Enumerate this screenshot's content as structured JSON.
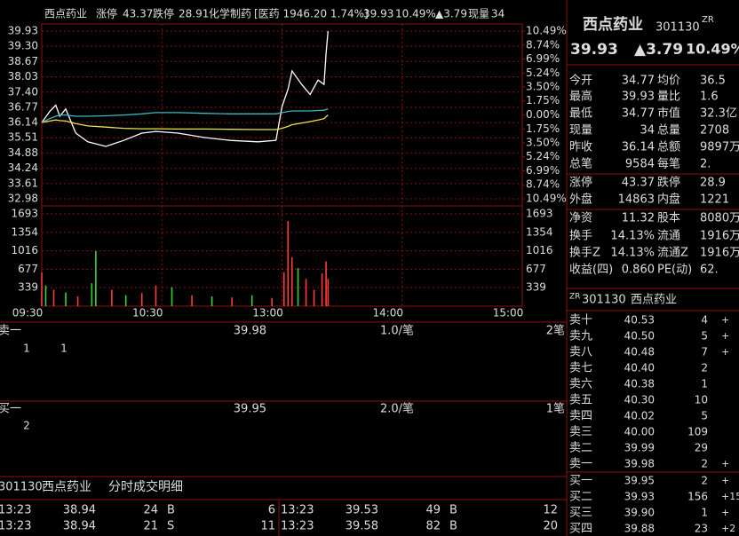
{
  "chart_header": {
    "name": "西点药业",
    "limit_up_label": "涨停",
    "limit_up": "43.37",
    "limit_down_label": "跌停",
    "limit_down": "28.91",
    "industry": "化学制药",
    "index_info": "[医药 1946.20 1.74%]",
    "price": "39.93",
    "change_pct": "10.49%",
    "change": "▲3.79",
    "volume_label": "现量",
    "volume": "34"
  },
  "chart_data": [
    {
      "type": "line",
      "x": [
        "09:30",
        "09:34",
        "09:37",
        "09:39",
        "09:42",
        "09:47",
        "09:53",
        "10:02",
        "10:11",
        "10:20",
        "10:27",
        "10:38",
        "10:51",
        "11:04",
        "11:18",
        "11:27",
        "13:00",
        "13:03",
        "13:05",
        "13:10",
        "13:14",
        "13:18",
        "13:21",
        "13:22",
        "13:23"
      ],
      "series": [
        {
          "color": "#ffffff",
          "values": [
            36.14,
            36.6,
            36.86,
            36.4,
            36.7,
            35.7,
            35.34,
            35.15,
            35.4,
            35.7,
            35.77,
            35.7,
            35.52,
            35.4,
            35.34,
            35.4,
            36.8,
            37.52,
            38.28,
            37.7,
            37.3,
            37.9,
            37.72,
            39.0,
            39.93
          ]
        },
        {
          "color": "#e8e84a",
          "values": [
            36.14,
            36.2,
            36.25,
            36.22,
            36.2,
            36.1,
            36.0,
            35.95,
            35.9,
            35.88,
            35.88,
            35.87,
            35.87,
            35.86,
            35.85,
            35.85,
            35.9,
            35.98,
            36.05,
            36.12,
            36.18,
            36.24,
            36.3,
            36.38,
            36.45
          ]
        },
        {
          "color": "#3fb8c0",
          "values": [
            36.14,
            36.3,
            36.4,
            36.45,
            36.45,
            36.4,
            36.4,
            36.42,
            36.45,
            36.5,
            36.55,
            36.55,
            36.52,
            36.5,
            36.5,
            36.5,
            36.55,
            36.6,
            36.62,
            36.62,
            36.62,
            36.64,
            36.65,
            36.68,
            36.7
          ]
        }
      ],
      "ylim": [
        32.98,
        39.93
      ],
      "yticks": [
        39.93,
        {
          "value": 39.3,
          "label": "39.30"
        },
        38.67,
        38.03,
        {
          "value": 37.4,
          "label": "37.40"
        },
        36.77,
        36.14,
        35.51,
        34.88,
        34.24,
        33.61,
        32.98
      ],
      "y2lim": [
        -10.49,
        10.49
      ],
      "y2ticks": [
        {
          "value": 10.49,
          "label": "10.49%"
        },
        {
          "value": 8.74,
          "label": "8.74%"
        },
        {
          "value": 6.99,
          "label": "6.99%"
        },
        {
          "value": 5.24,
          "label": "5.24%"
        },
        {
          "value": 3.5,
          "label": "3.50%"
        },
        {
          "value": 1.75,
          "label": "1.75%"
        },
        {
          "value": 0,
          "label": "0.00%"
        },
        {
          "value": -1.75,
          "label": "1.75%"
        },
        {
          "value": -3.5,
          "label": "3.50%"
        },
        {
          "value": -5.24,
          "label": "5.24%"
        },
        {
          "value": -6.99,
          "label": "6.99%"
        },
        {
          "value": -8.74,
          "label": "8.74%"
        },
        {
          "value": -10.49,
          "label": "10.49%"
        }
      ],
      "xticks": [
        "09:30",
        "10:30",
        "13:00",
        "14:00",
        "15:00"
      ],
      "grid": true
    },
    {
      "type": "bar",
      "x": [
        "09:30",
        "09:32",
        "09:36",
        "09:42",
        "09:48",
        "09:55",
        "09:57",
        "10:05",
        "10:12",
        "10:20",
        "10:27",
        "10:35",
        "10:45",
        "10:55",
        "11:05",
        "11:15",
        "11:25",
        "13:01",
        "13:03",
        "13:05",
        "13:08",
        "13:12",
        "13:16",
        "13:20",
        "13:22",
        "13:23"
      ],
      "values": [
        620,
        380,
        300,
        250,
        180,
        420,
        1010,
        300,
        200,
        240,
        380,
        350,
        200,
        180,
        160,
        200,
        150,
        620,
        1560,
        900,
        700,
        500,
        300,
        600,
        820,
        500
      ],
      "colors": [
        "#ff3b3b",
        "#3bd13b",
        "#ff3b3b",
        "#3bd13b",
        "#ff3b3b",
        "#3bd13b",
        "#3bd13b",
        "#ff3b3b",
        "#3bd13b",
        "#ff3b3b",
        "#ff3b3b",
        "#3bd13b",
        "#ff3b3b",
        "#3bd13b",
        "#ff3b3b",
        "#3bd13b",
        "#ff3b3b",
        "#ff3b3b",
        "#ff3b3b",
        "#ff3b3b",
        "#3bd13b",
        "#ff3b3b",
        "#ff3b3b",
        "#ff3b3b",
        "#ff3b3b",
        "#ff3b3b"
      ],
      "ylim": [
        0,
        1693
      ],
      "yticks": [
        339,
        677,
        1016,
        1354,
        1693
      ],
      "grid": true
    }
  ],
  "level1": {
    "ask": {
      "label": "卖一",
      "price": "39.98",
      "per": "1.0/笔",
      "count": "2笔",
      "queue": [
        "1",
        "1"
      ]
    },
    "bid": {
      "label": "买一",
      "price": "39.95",
      "per": "2.0/笔",
      "count": "1笔",
      "queue": [
        "2"
      ]
    }
  },
  "detail": {
    "ticker": "301130",
    "name": "西点药业",
    "title": "分时成交明细",
    "rows": [
      [
        [
          "13:23",
          "38.94",
          "24",
          "B",
          "6"
        ],
        [
          "13:23",
          "39.53",
          "49",
          "B",
          "12"
        ]
      ],
      [
        [
          "13:23",
          "38.94",
          "21",
          "S",
          "11"
        ],
        [
          "13:23",
          "39.58",
          "82",
          "B",
          "20"
        ]
      ]
    ]
  },
  "quote_header": {
    "name": "西点药业",
    "ticker": "301130",
    "tag": "ZR",
    "price": "39.93",
    "change": "▲3.79",
    "change_pct": "10.49%"
  },
  "stats": [
    [
      "今开",
      "34.77",
      "均价",
      "36.5"
    ],
    [
      "最高",
      "39.93",
      "量比",
      "1.6"
    ],
    [
      "最低",
      "34.77",
      "市值",
      "32.3亿"
    ],
    [
      "现量",
      "34",
      "总量",
      "2708"
    ],
    [
      "昨收",
      "36.14",
      "总额",
      "9897万"
    ],
    [
      "总笔",
      "9584",
      "每笔",
      "2."
    ],
    [
      "涨停",
      "43.37",
      "跌停",
      "28.9"
    ],
    [
      "外盘",
      "14863",
      "内盘",
      "1221"
    ],
    [
      "净资",
      "11.32",
      "股本",
      "8080万"
    ],
    [
      "换手",
      "14.13%",
      "流通",
      "1916万"
    ],
    [
      "换手Z",
      "14.13%",
      "流通Z",
      "1916万"
    ],
    [
      "收益(四)",
      "0.860",
      "PE(动)",
      "62."
    ]
  ],
  "book_header": {
    "tag": "ZR",
    "ticker": "301130",
    "name": "西点药业"
  },
  "book": [
    [
      "卖十",
      "40.53",
      "4",
      "+"
    ],
    [
      "卖九",
      "40.50",
      "5",
      "+"
    ],
    [
      "卖八",
      "40.48",
      "7",
      "+"
    ],
    [
      "卖七",
      "40.40",
      "2"
    ],
    [
      "卖六",
      "40.38",
      "1"
    ],
    [
      "卖五",
      "40.30",
      "10"
    ],
    [
      "卖四",
      "40.02",
      "5"
    ],
    [
      "卖三",
      "40.00",
      "109"
    ],
    [
      "卖二",
      "39.99",
      "29"
    ],
    [
      "卖一",
      "39.98",
      "2",
      "+"
    ],
    [
      "买一",
      "39.95",
      "2",
      "+"
    ],
    [
      "买二",
      "39.93",
      "156",
      "+15"
    ],
    [
      "买三",
      "39.90",
      "1",
      "+"
    ],
    [
      "买四",
      "39.88",
      "23",
      "+2"
    ]
  ]
}
